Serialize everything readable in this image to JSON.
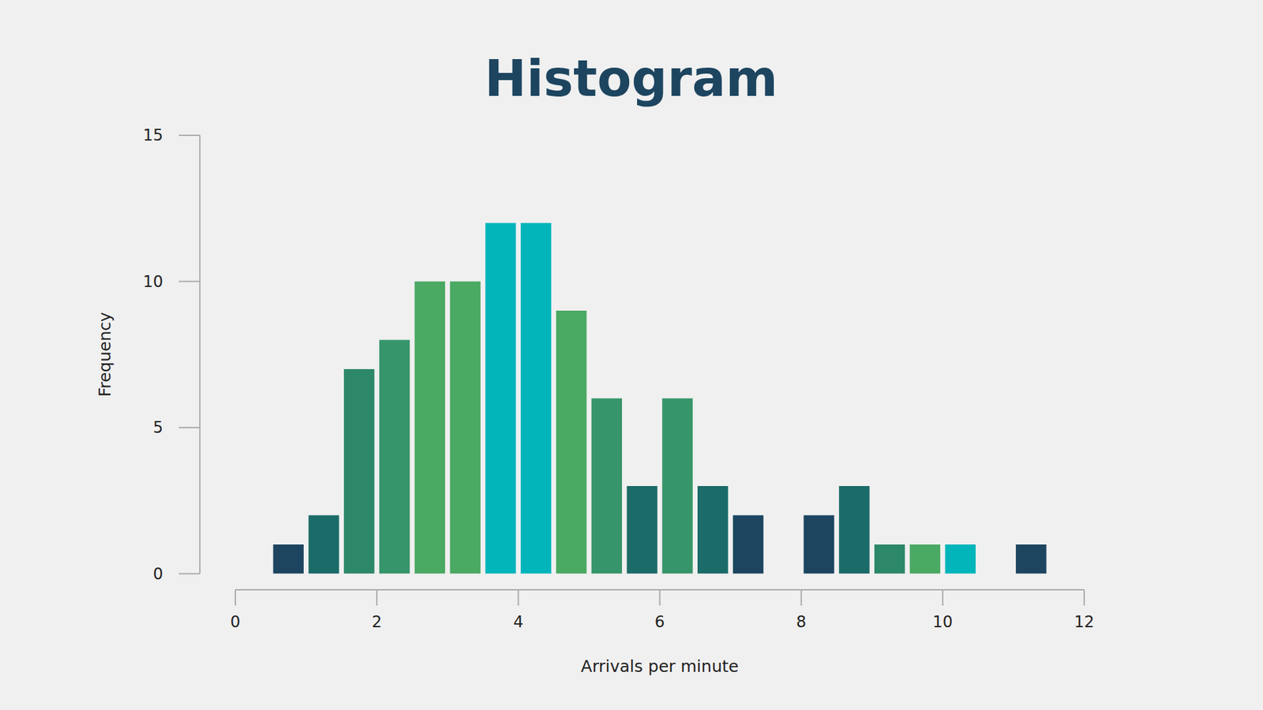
{
  "chart_data": {
    "type": "histogram",
    "title": "Histogram",
    "x_label": "Arrivals per minute",
    "y_label": "Frequency",
    "bins": [
      0.5,
      1,
      1.5,
      2,
      2.5,
      3,
      3.5,
      4,
      4.5,
      5,
      5.5,
      6,
      6.5,
      7,
      7.5,
      8,
      8.5,
      9,
      9.5,
      10,
      10.5,
      11,
      11.5
    ],
    "values": [
      1,
      2,
      7,
      8,
      10,
      10,
      12,
      12,
      9,
      6,
      3,
      6,
      3,
      2,
      0,
      2,
      3,
      1,
      1,
      1,
      0,
      1
    ],
    "colors": [
      "#1d4560",
      "#1b6b68",
      "#2d8769",
      "#36956a",
      "#4aa963",
      "#4aa963",
      "#02b5bb",
      "#02b5bb",
      "#4aa963",
      "#36956a",
      "#1b6b68",
      "#36956a",
      "#1b6b68",
      "#1d4560",
      "#1d4560",
      "#1d4560",
      "#1b6b68",
      "#2d8769",
      "#4aa963",
      "#02b5bb",
      "#02b5bb",
      "#1d4560"
    ],
    "xlim": [
      0,
      12
    ],
    "xticks": [
      0,
      2,
      4,
      6,
      8,
      10,
      12
    ],
    "ylim": [
      0,
      15
    ],
    "yticks": [
      0,
      5,
      10,
      15
    ],
    "grid": false
  }
}
